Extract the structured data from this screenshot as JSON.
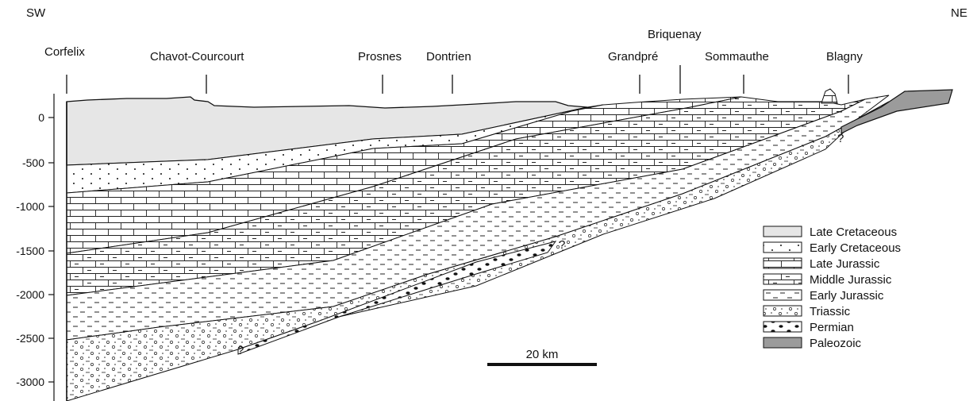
{
  "orientation": {
    "left": "SW",
    "right": "NE"
  },
  "localities": [
    {
      "name": "Corfelix"
    },
    {
      "name": "Chavot-Courcourt"
    },
    {
      "name": "Prosnes"
    },
    {
      "name": "Dontrien"
    },
    {
      "name": "Grandpré"
    },
    {
      "name": "Briquenay"
    },
    {
      "name": "Sommauthe"
    },
    {
      "name": "Blagny"
    }
  ],
  "depth_axis": {
    "ticks": [
      "0",
      "-500",
      "-1000",
      "-1500",
      "-2000",
      "-2500",
      "-3000"
    ]
  },
  "legend": [
    {
      "label": "Late Cretaceous",
      "pattern": "late-cretaceous"
    },
    {
      "label": "Early Cretaceous",
      "pattern": "early-cretaceous"
    },
    {
      "label": "Late Jurassic",
      "pattern": "late-jurassic"
    },
    {
      "label": "Middle Jurassic",
      "pattern": "middle-jurassic"
    },
    {
      "label": "Early Jurassic",
      "pattern": "early-jurassic"
    },
    {
      "label": "Triassic",
      "pattern": "triassic"
    },
    {
      "label": "Permian",
      "pattern": "permian"
    },
    {
      "label": "Paleozoic",
      "pattern": "paleozoic"
    }
  ],
  "scale_bar": {
    "label": "20 km"
  },
  "uncertain_marks": [
    "?",
    "?",
    "?"
  ],
  "colors": {
    "late_cretaceous_fill": "#e6e6e6",
    "paleozoic_fill": "#9b9b9b",
    "line": "#111111"
  }
}
